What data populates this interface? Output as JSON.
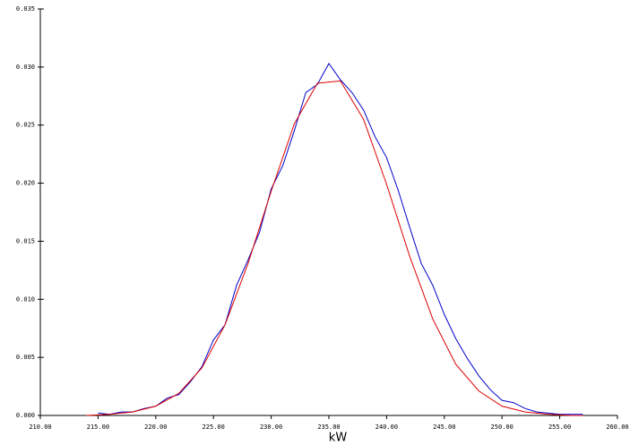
{
  "chart_data": {
    "type": "line",
    "xlabel": "kW",
    "xlim": [
      210,
      260
    ],
    "xticks": [
      {
        "value": 210,
        "label": "210.00"
      },
      {
        "value": 215,
        "label": "215.00"
      },
      {
        "value": 220,
        "label": "220.00"
      },
      {
        "value": 225,
        "label": "225.00"
      },
      {
        "value": 230,
        "label": "230.00"
      },
      {
        "value": 235,
        "label": "235.00"
      },
      {
        "value": 240,
        "label": "240.00"
      },
      {
        "value": 245,
        "label": "245.00"
      },
      {
        "value": 250,
        "label": "250.00"
      },
      {
        "value": 255,
        "label": "255.00"
      },
      {
        "value": 260,
        "label": "260.00"
      }
    ],
    "ylim": [
      0,
      0.035
    ],
    "yticks": [
      {
        "value": 0,
        "label": "0.000"
      },
      {
        "value": 0.005,
        "label": "0.005"
      },
      {
        "value": 0.01,
        "label": "0.010"
      },
      {
        "value": 0.015,
        "label": "0.015"
      },
      {
        "value": 0.02,
        "label": "0.020"
      },
      {
        "value": 0.025,
        "label": "0.025"
      },
      {
        "value": 0.03,
        "label": "0.030"
      },
      {
        "value": 0.035,
        "label": "0.035"
      }
    ],
    "series": [
      {
        "color": "#0000cc",
        "x": [
          215,
          216,
          217,
          218,
          219,
          220,
          221,
          222,
          223,
          224,
          225,
          226,
          227,
          228,
          229,
          230,
          231,
          232,
          233,
          234,
          235,
          236,
          237,
          238,
          239,
          240,
          241,
          242,
          243,
          244,
          245,
          246,
          247,
          248,
          249,
          250,
          251,
          252,
          253,
          254,
          255,
          256,
          257
        ],
        "values": [
          0.0002,
          0.0001,
          0.0003,
          0.0003,
          0.0006,
          0.0008,
          0.0015,
          0.0018,
          0.0029,
          0.0042,
          0.0065,
          0.0078,
          0.0112,
          0.0134,
          0.0158,
          0.0195,
          0.0215,
          0.0245,
          0.0278,
          0.0285,
          0.0303,
          0.0289,
          0.0278,
          0.0263,
          0.024,
          0.0222,
          0.0194,
          0.0162,
          0.0131,
          0.0112,
          0.0087,
          0.0066,
          0.0049,
          0.0034,
          0.0022,
          0.0013,
          0.0011,
          0.0006,
          0.0003,
          0.0002,
          0.0001,
          0.0001,
          0.0001
        ]
      },
      {
        "color": "#dd0000",
        "x": [
          214,
          216,
          218,
          220,
          222,
          224,
          226,
          228,
          230,
          232,
          234,
          236,
          238,
          240,
          242,
          244,
          246,
          248,
          250,
          252,
          254,
          256,
          257
        ],
        "values": [
          0.0,
          0.0001,
          0.0003,
          0.0008,
          0.0019,
          0.0041,
          0.0078,
          0.0131,
          0.0193,
          0.0251,
          0.0286,
          0.0288,
          0.0255,
          0.0199,
          0.0137,
          0.0083,
          0.0044,
          0.0021,
          0.0008,
          0.0003,
          0.0001,
          0.0,
          0.0
        ]
      }
    ]
  }
}
